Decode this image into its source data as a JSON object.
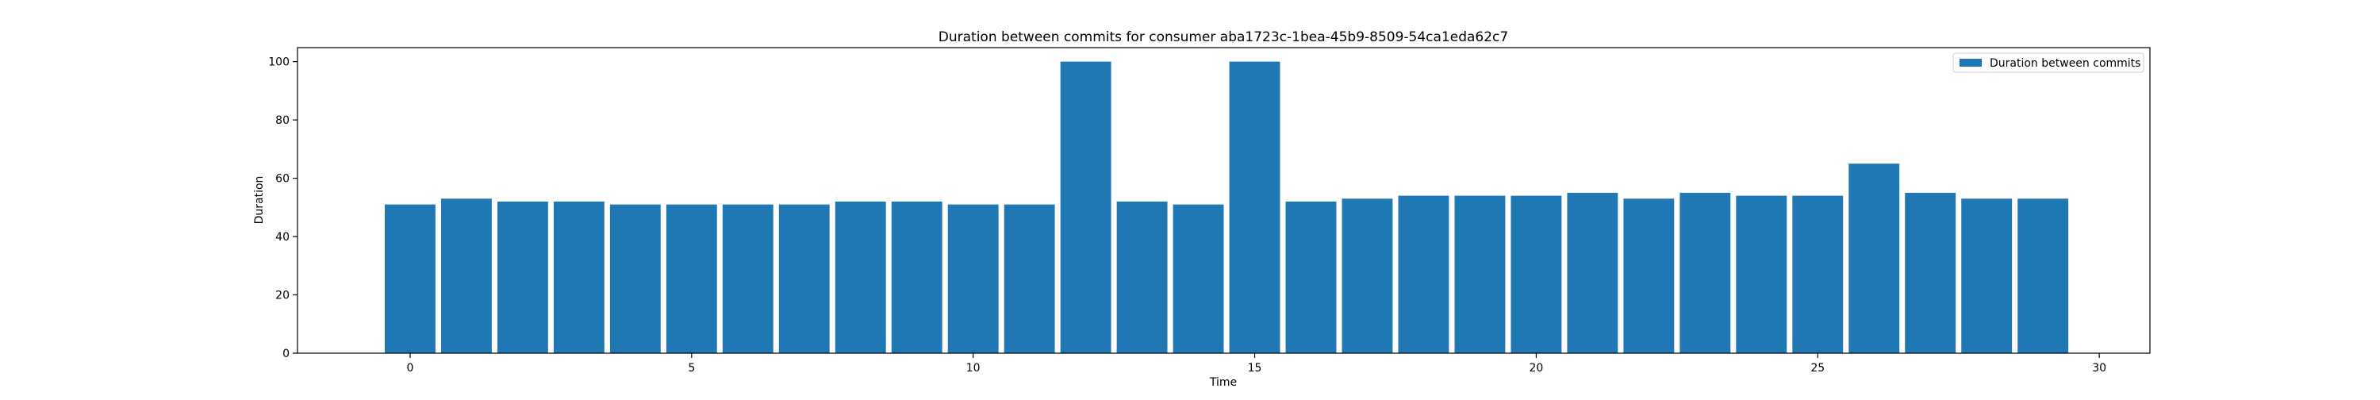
{
  "chart_data": {
    "type": "bar",
    "title": "Duration between commits for consumer aba1723c-1bea-45b9-8509-54ca1eda62c7",
    "xlabel": "Time",
    "ylabel": "Duration",
    "x": [
      0,
      1,
      2,
      3,
      4,
      5,
      6,
      7,
      8,
      9,
      10,
      11,
      12,
      13,
      14,
      15,
      16,
      17,
      18,
      19,
      20,
      21,
      22,
      23,
      24,
      25,
      26,
      27,
      28,
      29
    ],
    "series": [
      {
        "name": "Duration between commits",
        "color": "#1f77b4",
        "values": [
          51,
          53,
          52,
          52,
          51,
          51,
          51,
          51,
          52,
          52,
          51,
          51,
          100,
          52,
          51,
          100,
          52,
          53,
          54,
          54,
          54,
          55,
          53,
          55,
          54,
          54,
          65,
          55,
          53,
          53
        ]
      }
    ],
    "xlim": [
      -2,
      30.9
    ],
    "ylim": [
      0,
      104.8
    ],
    "xticks": [
      0,
      5,
      10,
      15,
      20,
      25,
      30
    ],
    "yticks": [
      0,
      20,
      40,
      60,
      80,
      100
    ],
    "grid": false,
    "legend": "top-right"
  }
}
